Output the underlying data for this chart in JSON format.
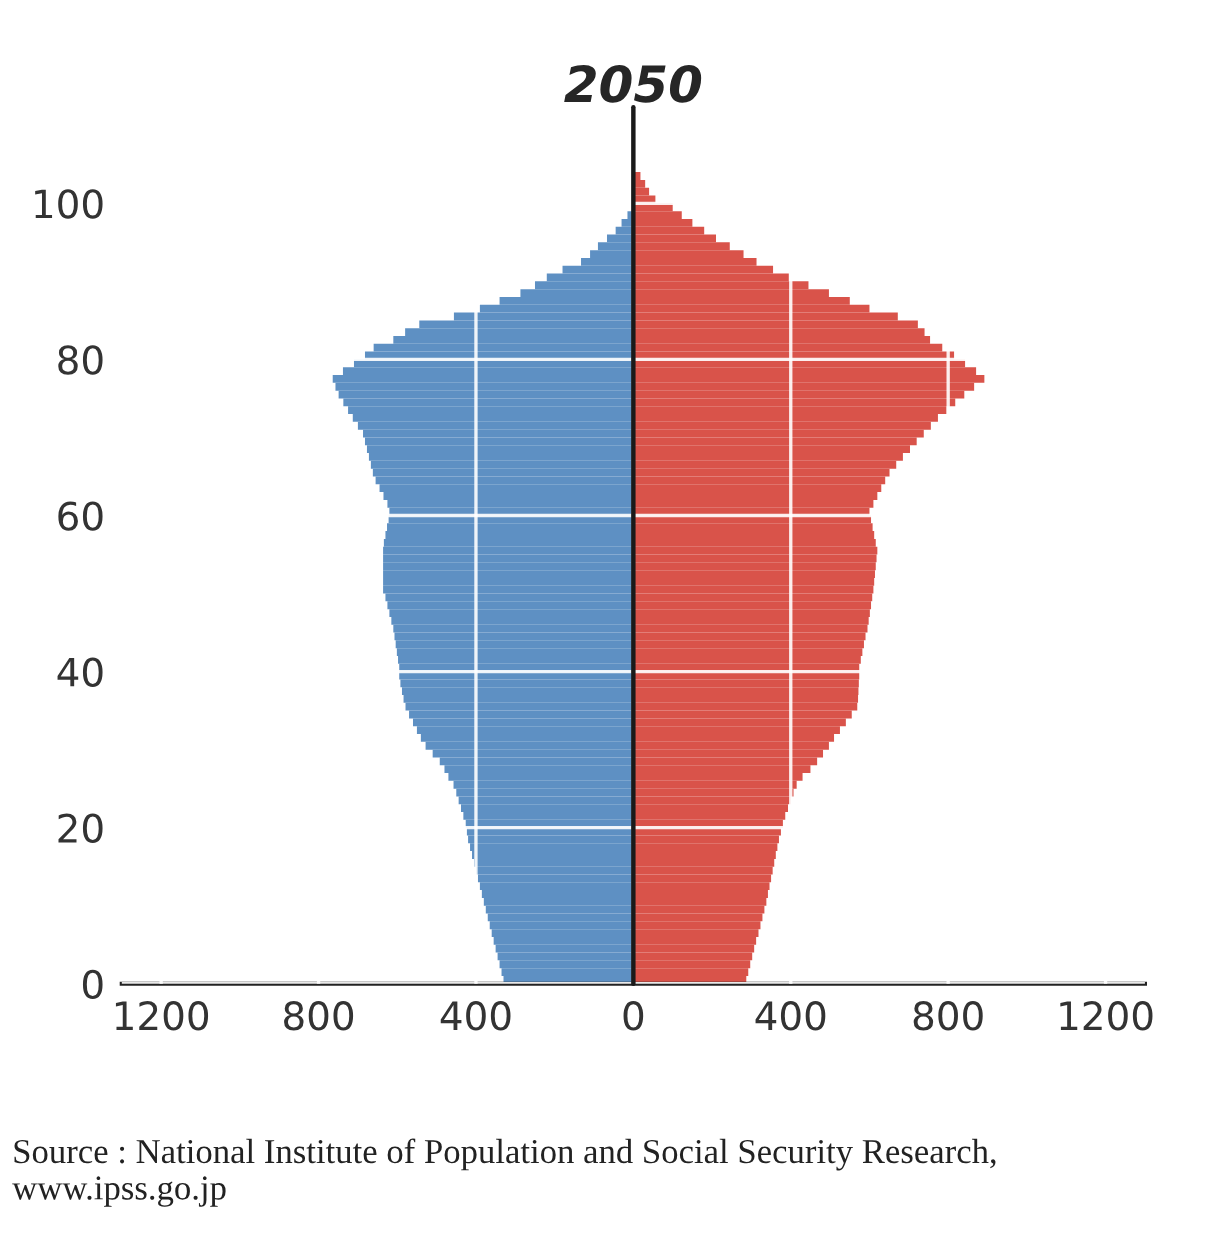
{
  "chart_data": {
    "type": "bar",
    "orientation": "horizontal",
    "stacked": true,
    "title": "2050",
    "x": [
      0,
      1,
      2,
      3,
      4,
      5,
      6,
      7,
      8,
      9,
      10,
      11,
      12,
      13,
      14,
      15,
      16,
      17,
      18,
      19,
      20,
      21,
      22,
      23,
      24,
      25,
      26,
      27,
      28,
      29,
      30,
      31,
      32,
      33,
      34,
      35,
      36,
      37,
      38,
      39,
      40,
      41,
      42,
      43,
      44,
      45,
      46,
      47,
      48,
      49,
      50,
      51,
      52,
      53,
      54,
      55,
      56,
      57,
      58,
      59,
      60,
      61,
      62,
      63,
      64,
      65,
      66,
      67,
      68,
      69,
      70,
      71,
      72,
      73,
      74,
      75,
      76,
      77,
      78,
      79,
      80,
      81,
      82,
      83,
      84,
      85,
      86,
      87,
      88,
      89,
      90,
      91,
      92,
      93,
      94,
      95,
      96,
      97,
      98,
      99,
      100,
      101,
      102,
      103
    ],
    "series": [
      {
        "color": "#5e90c3",
        "values": [
          -330,
          -335,
          -340,
          -345,
          -350,
          -355,
          -360,
          -365,
          -370,
          -375,
          -380,
          -385,
          -390,
          -395,
          -400,
          -405,
          -410,
          -415,
          -420,
          -423,
          -426,
          -432,
          -438,
          -444,
          -450,
          -457,
          -470,
          -480,
          -492,
          -510,
          -528,
          -540,
          -550,
          -560,
          -570,
          -579,
          -584,
          -588,
          -592,
          -595,
          -595,
          -598,
          -601,
          -604,
          -607,
          -610,
          -615,
          -620,
          -625,
          -630,
          -636,
          -636,
          -636,
          -636,
          -636,
          -636,
          -634,
          -630,
          -626,
          -622,
          -620,
          -625,
          -635,
          -645,
          -655,
          -662,
          -667,
          -672,
          -677,
          -682,
          -687,
          -700,
          -713,
          -725,
          -737,
          -749,
          -757,
          -764,
          -738,
          -710,
          -682,
          -660,
          -610,
          -580,
          -544,
          -456,
          -390,
          -340,
          -287,
          -250,
          -220,
          -180,
          -133,
          -110,
          -90,
          -67,
          -45,
          -30,
          -15,
          null,
          null,
          null,
          null,
          null
        ]
      },
      {
        "color": "#d9534a",
        "values": [
          287,
          292,
          297,
          302,
          307,
          312,
          318,
          323,
          328,
          333,
          338,
          342,
          346,
          350,
          354,
          358,
          362,
          366,
          370,
          375,
          380,
          386,
          393,
          400,
          407,
          415,
          430,
          450,
          467,
          482,
          497,
          510,
          525,
          540,
          555,
          569,
          571,
          572,
          573,
          574,
          574,
          578,
          582,
          586,
          590,
          595,
          598,
          601,
          604,
          607,
          610,
          612,
          614,
          616,
          618,
          620,
          616,
          612,
          608,
          604,
          600,
          610,
          620,
          630,
          640,
          651,
          668,
          685,
          703,
          720,
          738,
          756,
          774,
          796,
          818,
          841,
          866,
          892,
          871,
          843,
          815,
          785,
          754,
          740,
          723,
          672,
          600,
          550,
          497,
          445,
          395,
          355,
          313,
          280,
          245,
          210,
          180,
          150,
          123,
          100,
          56,
          40,
          30,
          18
        ]
      }
    ],
    "xlim": [
      -1300,
      1300
    ],
    "xticks": [
      {
        "value": -1200,
        "label": "1200"
      },
      {
        "value": -800,
        "label": "800"
      },
      {
        "value": -400,
        "label": "400"
      },
      0,
      400,
      800,
      1200
    ],
    "ylim": [
      0,
      108
    ],
    "yticks": [
      0,
      20,
      40,
      60,
      80,
      100
    ],
    "grid": true,
    "ref_lines": [
      {
        "axis": "x",
        "value": 0,
        "color": "#1a1a1a"
      }
    ],
    "annotations": [
      "Source : National Institute of Population and Social Security Research, www.ipss.go.jp"
    ]
  }
}
